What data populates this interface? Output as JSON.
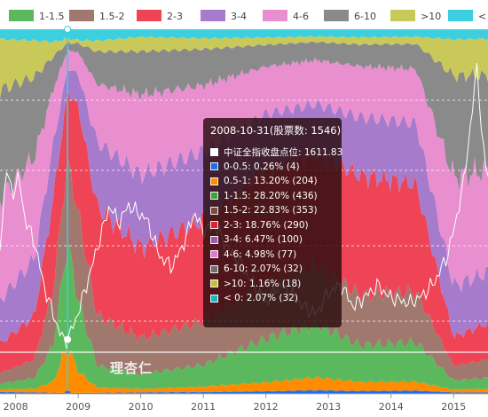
{
  "chart_data": {
    "type": "area",
    "stacked": true,
    "legend": {
      "position": "top",
      "items": [
        {
          "label": "1-1.5",
          "color": "#5cb85c"
        },
        {
          "label": "1.5-2",
          "color": "#a0786e"
        },
        {
          "label": "2-3",
          "color": "#ee4455"
        },
        {
          "label": "3-4",
          "color": "#a77bcc"
        },
        {
          "label": "4-6",
          "color": "#e98fd0"
        },
        {
          "label": "6-10",
          "color": "#8a8a8a"
        },
        {
          "label": ">10",
          "color": "#c9c95a"
        },
        {
          "label": "< 0",
          "color": "#3ccfe0"
        }
      ]
    },
    "x_ticks": [
      "2008",
      "2009",
      "2010",
      "2011",
      "2012",
      "2013",
      "2014",
      "2015"
    ],
    "x_range": [
      2007.75,
      2015.55
    ],
    "grid": true,
    "hover": {
      "date": 2008.83
    },
    "series": [
      {
        "name": "0-0.5",
        "color": "#1e6ff0",
        "values_by_year": [
          [
            2007.75,
            0.5
          ],
          [
            2008.3,
            0.4
          ],
          [
            2008.83,
            0.26
          ],
          [
            2009.3,
            0.3
          ],
          [
            2010,
            0.4
          ],
          [
            2011,
            0.5
          ],
          [
            2012,
            0.7
          ],
          [
            2012.8,
            1.0
          ],
          [
            2013.5,
            0.8
          ],
          [
            2014.4,
            0.9
          ],
          [
            2015,
            0.4
          ],
          [
            2015.55,
            0.4
          ]
        ]
      },
      {
        "name": "0.5-1",
        "color": "#ff8c00",
        "values_by_year": [
          [
            2007.75,
            0.8
          ],
          [
            2008.3,
            1.0
          ],
          [
            2008.6,
            3.0
          ],
          [
            2008.83,
            13.2
          ],
          [
            2009.0,
            6.0
          ],
          [
            2009.3,
            1.5
          ],
          [
            2010,
            1.0
          ],
          [
            2011,
            1.5
          ],
          [
            2012,
            2.5
          ],
          [
            2012.8,
            3.5
          ],
          [
            2013.5,
            2.5
          ],
          [
            2014.4,
            2.5
          ],
          [
            2015,
            0.8
          ],
          [
            2015.55,
            1.0
          ]
        ]
      },
      {
        "name": "1-1.5",
        "color": "#5cb85c",
        "values_by_year": [
          [
            2007.75,
            1.5
          ],
          [
            2008.3,
            3.0
          ],
          [
            2008.6,
            10.0
          ],
          [
            2008.83,
            28.2
          ],
          [
            2009.0,
            20.0
          ],
          [
            2009.3,
            6.0
          ],
          [
            2010,
            4.0
          ],
          [
            2011,
            6.0
          ],
          [
            2012,
            12.0
          ],
          [
            2012.8,
            15.0
          ],
          [
            2013.5,
            10.0
          ],
          [
            2014.4,
            11.0
          ],
          [
            2015,
            2.5
          ],
          [
            2015.55,
            3.0
          ]
        ]
      },
      {
        "name": "1.5-2",
        "color": "#a0786e",
        "values_by_year": [
          [
            2007.75,
            3.0
          ],
          [
            2008.3,
            5.0
          ],
          [
            2008.6,
            15.0
          ],
          [
            2008.83,
            22.83
          ],
          [
            2009.0,
            24.0
          ],
          [
            2009.3,
            14.0
          ],
          [
            2010,
            10.0
          ],
          [
            2011,
            12.0
          ],
          [
            2012,
            15.0
          ],
          [
            2012.8,
            16.0
          ],
          [
            2013.5,
            14.0
          ],
          [
            2014.4,
            14.0
          ],
          [
            2015,
            4.0
          ],
          [
            2015.55,
            5.0
          ]
        ]
      },
      {
        "name": "2-3",
        "color": "#ee4455",
        "values_by_year": [
          [
            2007.75,
            8.0
          ],
          [
            2008.3,
            12.0
          ],
          [
            2008.6,
            25.0
          ],
          [
            2008.83,
            18.76
          ],
          [
            2009.0,
            30.0
          ],
          [
            2009.3,
            30.0
          ],
          [
            2010,
            25.0
          ],
          [
            2011,
            28.0
          ],
          [
            2012,
            32.0
          ],
          [
            2012.8,
            30.0
          ],
          [
            2013.5,
            33.0
          ],
          [
            2014.4,
            30.0
          ],
          [
            2015,
            8.0
          ],
          [
            2015.55,
            10.0
          ]
        ]
      },
      {
        "name": "3-4",
        "color": "#a77bcc",
        "values_by_year": [
          [
            2007.75,
            12.0
          ],
          [
            2008.3,
            16.0
          ],
          [
            2008.6,
            15.0
          ],
          [
            2008.83,
            6.47
          ],
          [
            2009.0,
            9.0
          ],
          [
            2009.3,
            18.0
          ],
          [
            2010,
            20.0
          ],
          [
            2011,
            19.0
          ],
          [
            2012,
            15.0
          ],
          [
            2012.8,
            14.0
          ],
          [
            2013.5,
            16.0
          ],
          [
            2014.4,
            17.0
          ],
          [
            2015,
            14.0
          ],
          [
            2015.55,
            14.0
          ]
        ]
      },
      {
        "name": "4-6",
        "color": "#e98fd0",
        "values_by_year": [
          [
            2007.75,
            28.0
          ],
          [
            2008.3,
            28.0
          ],
          [
            2008.6,
            15.0
          ],
          [
            2008.83,
            4.98
          ],
          [
            2009.0,
            6.0
          ],
          [
            2009.3,
            16.0
          ],
          [
            2010,
            22.0
          ],
          [
            2011,
            18.0
          ],
          [
            2012,
            13.0
          ],
          [
            2012.8,
            12.0
          ],
          [
            2013.5,
            14.0
          ],
          [
            2014.4,
            15.0
          ],
          [
            2015,
            30.0
          ],
          [
            2015.55,
            28.0
          ]
        ]
      },
      {
        "name": "6-10",
        "color": "#8a8a8a",
        "values_by_year": [
          [
            2007.75,
            30.0
          ],
          [
            2008.3,
            22.0
          ],
          [
            2008.6,
            9.0
          ],
          [
            2008.83,
            2.07
          ],
          [
            2009.0,
            2.5
          ],
          [
            2009.3,
            9.0
          ],
          [
            2010,
            12.0
          ],
          [
            2011,
            10.0
          ],
          [
            2012,
            6.0
          ],
          [
            2012.8,
            5.0
          ],
          [
            2013.5,
            6.0
          ],
          [
            2014.4,
            7.0
          ],
          [
            2015,
            28.0
          ],
          [
            2015.55,
            26.0
          ]
        ]
      },
      {
        "name": ">10",
        "color": "#c9c95a",
        "values_by_year": [
          [
            2007.75,
            14.0
          ],
          [
            2008.3,
            10.0
          ],
          [
            2008.6,
            4.0
          ],
          [
            2008.83,
            1.16
          ],
          [
            2009.0,
            1.0
          ],
          [
            2009.3,
            3.0
          ],
          [
            2010,
            4.0
          ],
          [
            2011,
            3.0
          ],
          [
            2012,
            2.0
          ],
          [
            2012.8,
            1.5
          ],
          [
            2013.5,
            2.0
          ],
          [
            2014.4,
            2.0
          ],
          [
            2015,
            10.0
          ],
          [
            2015.55,
            10.0
          ]
        ]
      },
      {
        "name": "< 0",
        "color": "#3ccfe0",
        "values_by_year": [
          [
            2007.75,
            2.2
          ],
          [
            2008.3,
            2.6
          ],
          [
            2008.6,
            3.0
          ],
          [
            2008.83,
            2.07
          ],
          [
            2009.0,
            2.5
          ],
          [
            2009.3,
            2.7
          ],
          [
            2010,
            1.6
          ],
          [
            2011,
            2.0
          ],
          [
            2012,
            1.8
          ],
          [
            2012.8,
            1.5
          ],
          [
            2013.5,
            1.7
          ],
          [
            2014.4,
            1.6
          ],
          [
            2015,
            2.3
          ],
          [
            2015.55,
            2.1
          ]
        ]
      }
    ],
    "index_line": {
      "name": "中证全指收盘点位",
      "color": "#ffffff",
      "values_by_year": [
        [
          2007.75,
          40
        ],
        [
          2007.85,
          62
        ],
        [
          2007.95,
          55
        ],
        [
          2008.05,
          60
        ],
        [
          2008.15,
          48
        ],
        [
          2008.3,
          42
        ],
        [
          2008.45,
          30
        ],
        [
          2008.6,
          22
        ],
        [
          2008.75,
          15
        ],
        [
          2008.83,
          15
        ],
        [
          2008.95,
          20
        ],
        [
          2009.1,
          28
        ],
        [
          2009.3,
          40
        ],
        [
          2009.5,
          52
        ],
        [
          2009.65,
          47
        ],
        [
          2009.8,
          52
        ],
        [
          2009.95,
          50
        ],
        [
          2010.1,
          48
        ],
        [
          2010.3,
          38
        ],
        [
          2010.5,
          35
        ],
        [
          2010.7,
          42
        ],
        [
          2010.85,
          50
        ],
        [
          2011.0,
          45
        ],
        [
          2011.2,
          46
        ],
        [
          2011.4,
          40
        ],
        [
          2011.6,
          36
        ],
        [
          2011.8,
          30
        ],
        [
          2012.0,
          25
        ],
        [
          2012.2,
          30
        ],
        [
          2012.4,
          28
        ],
        [
          2012.6,
          24
        ],
        [
          2012.8,
          22
        ],
        [
          2013.0,
          28
        ],
        [
          2013.2,
          30
        ],
        [
          2013.4,
          24
        ],
        [
          2013.6,
          27
        ],
        [
          2013.8,
          30
        ],
        [
          2013.95,
          27
        ],
        [
          2014.1,
          26
        ],
        [
          2014.3,
          25
        ],
        [
          2014.5,
          27
        ],
        [
          2014.7,
          31
        ],
        [
          2014.9,
          38
        ],
        [
          2015.0,
          45
        ],
        [
          2015.15,
          57
        ],
        [
          2015.3,
          78
        ],
        [
          2015.38,
          92
        ],
        [
          2015.45,
          70
        ],
        [
          2015.55,
          60
        ]
      ]
    }
  },
  "tooltip": {
    "title": "2008-10-31(股票数: 1546)",
    "rows": [
      {
        "color": "#ffffff",
        "text": "中证全指收盘点位: 1611.83"
      },
      {
        "color": "#1e6ff0",
        "text": "0-0.5: 0.26% (4)"
      },
      {
        "color": "#ff8c00",
        "text": "0.5-1: 13.20% (204)"
      },
      {
        "color": "#3aa33a",
        "text": "1-1.5: 28.20% (436)"
      },
      {
        "color": "#7a4a3a",
        "text": "1.5-2: 22.83% (353)"
      },
      {
        "color": "#e81e2e",
        "text": "2-3: 18.76% (290)"
      },
      {
        "color": "#9b59b6",
        "text": "3-4: 6.47% (100)"
      },
      {
        "color": "#e07ad0",
        "text": "4-6: 4.98% (77)"
      },
      {
        "color": "#6d6d6d",
        "text": "6-10: 2.07% (32)"
      },
      {
        "color": "#c2c23a",
        "text": ">10: 1.16% (18)"
      },
      {
        "color": "#17b9c9",
        "text": "< 0: 2.07% (32)"
      }
    ]
  },
  "watermark": "理杏仁"
}
